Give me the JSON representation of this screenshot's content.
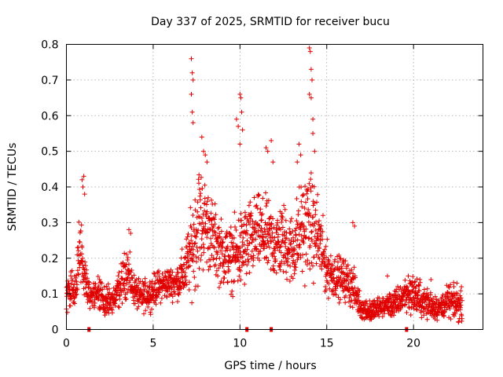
{
  "chart_data": {
    "type": "scatter",
    "title": "Day 337 of 2025, SRMTID for receiver bucu",
    "xlabel": "GPS time / hours",
    "ylabel": "SRMTID / TECUs",
    "xlim": [
      0,
      24
    ],
    "ylim": [
      0,
      0.8
    ],
    "x_ticks": [
      0,
      5,
      10,
      15,
      20
    ],
    "x_tick_labels": [
      "0",
      "5",
      "10",
      "15",
      "20"
    ],
    "y_ticks": [
      0,
      0.1,
      0.2,
      0.3,
      0.4,
      0.5,
      0.6,
      0.7,
      0.8
    ],
    "y_tick_labels": [
      "0",
      "0.1",
      "0.2",
      "0.3",
      "0.4",
      "0.5",
      "0.6",
      "0.7",
      "0.8"
    ],
    "grid": true,
    "marker_color": "#e00000",
    "gap_markers_x": [
      1.3,
      10.4,
      11.8,
      19.6
    ],
    "series": [
      {
        "name": "SRMTID",
        "marker": "+",
        "profile_x": [
          0,
          0.5,
          0.8,
          1.0,
          1.3,
          1.8,
          2.3,
          2.8,
          3.2,
          3.5,
          3.8,
          4.2,
          4.8,
          5.3,
          5.8,
          6.3,
          6.8,
          7.2,
          7.6,
          8.0,
          8.5,
          9.0,
          9.5,
          10.0,
          10.5,
          11.0,
          11.5,
          12.0,
          12.5,
          13.0,
          13.5,
          14.0,
          14.5,
          15.0,
          15.5,
          16.0,
          16.5,
          17.0,
          17.5,
          18.0,
          18.5,
          19.0,
          19.5,
          20.0,
          20.5,
          21.0,
          21.5,
          22.0,
          22.5,
          22.8
        ],
        "profile_y": [
          0.1,
          0.11,
          0.25,
          0.16,
          0.1,
          0.1,
          0.08,
          0.09,
          0.13,
          0.17,
          0.12,
          0.09,
          0.1,
          0.12,
          0.13,
          0.13,
          0.16,
          0.22,
          0.3,
          0.3,
          0.25,
          0.21,
          0.2,
          0.22,
          0.24,
          0.27,
          0.26,
          0.24,
          0.25,
          0.22,
          0.28,
          0.3,
          0.26,
          0.17,
          0.15,
          0.14,
          0.12,
          0.06,
          0.05,
          0.06,
          0.07,
          0.07,
          0.1,
          0.1,
          0.08,
          0.07,
          0.06,
          0.08,
          0.07,
          0.07
        ],
        "profile_spread": [
          0.03,
          0.03,
          0.08,
          0.04,
          0.03,
          0.03,
          0.03,
          0.03,
          0.04,
          0.05,
          0.03,
          0.03,
          0.03,
          0.03,
          0.03,
          0.03,
          0.05,
          0.08,
          0.12,
          0.08,
          0.07,
          0.06,
          0.06,
          0.08,
          0.08,
          0.07,
          0.07,
          0.07,
          0.07,
          0.07,
          0.09,
          0.1,
          0.08,
          0.05,
          0.04,
          0.04,
          0.04,
          0.02,
          0.02,
          0.02,
          0.02,
          0.03,
          0.03,
          0.04,
          0.03,
          0.03,
          0.02,
          0.03,
          0.03,
          0.03
        ],
        "spikes": [
          [
            0.9,
            0.42
          ],
          [
            0.95,
            0.4
          ],
          [
            1.0,
            0.43
          ],
          [
            1.05,
            0.38
          ],
          [
            3.6,
            0.28
          ],
          [
            3.7,
            0.27
          ],
          [
            7.2,
            0.76
          ],
          [
            7.25,
            0.72
          ],
          [
            7.3,
            0.7
          ],
          [
            7.2,
            0.66
          ],
          [
            7.25,
            0.61
          ],
          [
            7.3,
            0.58
          ],
          [
            7.8,
            0.54
          ],
          [
            7.9,
            0.5
          ],
          [
            8.0,
            0.49
          ],
          [
            8.1,
            0.47
          ],
          [
            9.8,
            0.59
          ],
          [
            9.9,
            0.57
          ],
          [
            10.0,
            0.66
          ],
          [
            10.05,
            0.65
          ],
          [
            10.1,
            0.61
          ],
          [
            10.15,
            0.56
          ],
          [
            10.0,
            0.52
          ],
          [
            11.5,
            0.51
          ],
          [
            11.6,
            0.5
          ],
          [
            11.8,
            0.53
          ],
          [
            11.9,
            0.47
          ],
          [
            13.3,
            0.47
          ],
          [
            13.4,
            0.52
          ],
          [
            13.5,
            0.49
          ],
          [
            14.0,
            0.79
          ],
          [
            14.05,
            0.78
          ],
          [
            14.1,
            0.73
          ],
          [
            14.15,
            0.7
          ],
          [
            14.0,
            0.66
          ],
          [
            14.1,
            0.65
          ],
          [
            14.2,
            0.59
          ],
          [
            14.2,
            0.55
          ],
          [
            14.3,
            0.5
          ],
          [
            16.5,
            0.3
          ],
          [
            16.6,
            0.29
          ],
          [
            18.5,
            0.15
          ],
          [
            19.7,
            0.15
          ],
          [
            21.0,
            0.14
          ],
          [
            22.5,
            0.13
          ]
        ]
      }
    ]
  }
}
